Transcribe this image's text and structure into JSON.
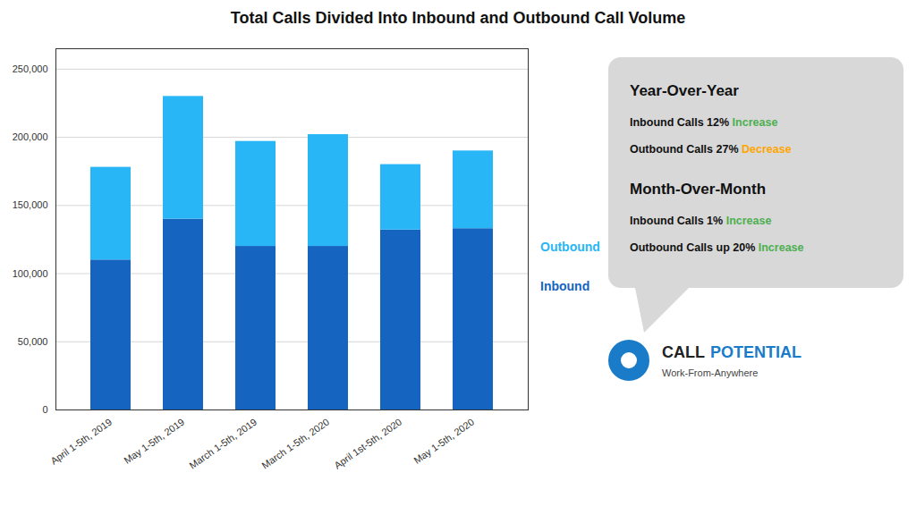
{
  "chart_data": {
    "type": "bar",
    "title": "Total Calls Divided Into Inbound and Outbound Call Volume",
    "categories": [
      "April 1-5th, 2019",
      "May 1-5th, 2019",
      "March 1-5th, 2019",
      "March 1-5th, 2020",
      "April 1st-5th, 2020",
      "May 1-5th, 2020"
    ],
    "stacked": true,
    "series": [
      {
        "name": "Inbound",
        "color": "#1565C0",
        "values": [
          110000,
          140000,
          120000,
          120000,
          132000,
          133000
        ]
      },
      {
        "name": "Outbound",
        "color": "#29B6F6",
        "values": [
          68000,
          90000,
          77000,
          82000,
          48000,
          57000
        ]
      }
    ],
    "ylim": [
      0,
      265000
    ],
    "yticks": [
      0,
      {
        "value": 50000,
        "label": "50,000"
      },
      {
        "value": 100000,
        "label": "100,000"
      },
      {
        "value": 150000,
        "label": "150,000"
      },
      {
        "value": 200000,
        "label": "200,000"
      },
      {
        "value": 250000,
        "label": "250,000"
      }
    ],
    "grid": true,
    "legend": "right",
    "annotations": [
      {
        "heading": "Year-Over-Year",
        "lines": [
          [
            {
              "text": "Inbound Calls 12% "
            },
            {
              "text": "Increase",
              "color": "#4CAF50"
            }
          ],
          [
            {
              "text": "Outbound Calls 27% "
            },
            {
              "text": "Decrease",
              "color": "#FFA500"
            }
          ]
        ]
      },
      {
        "heading": "Month-Over-Month",
        "lines": [
          [
            {
              "text": "Inbound Calls 1% "
            },
            {
              "text": "Increase",
              "color": "#4CAF50"
            }
          ],
          [
            {
              "text": "Outbound Calls up 20% "
            },
            {
              "text": "Increase",
              "color": "#4CAF50"
            }
          ]
        ]
      },
      {
        "lines": [
          [
            {
              "text": "CALL"
            },
            {
              "text": "POTENTIAL",
              "color": "#1A7CC9"
            }
          ],
          [
            {
              "text": "Work-From-Anywhere"
            }
          ]
        ]
      }
    ]
  }
}
